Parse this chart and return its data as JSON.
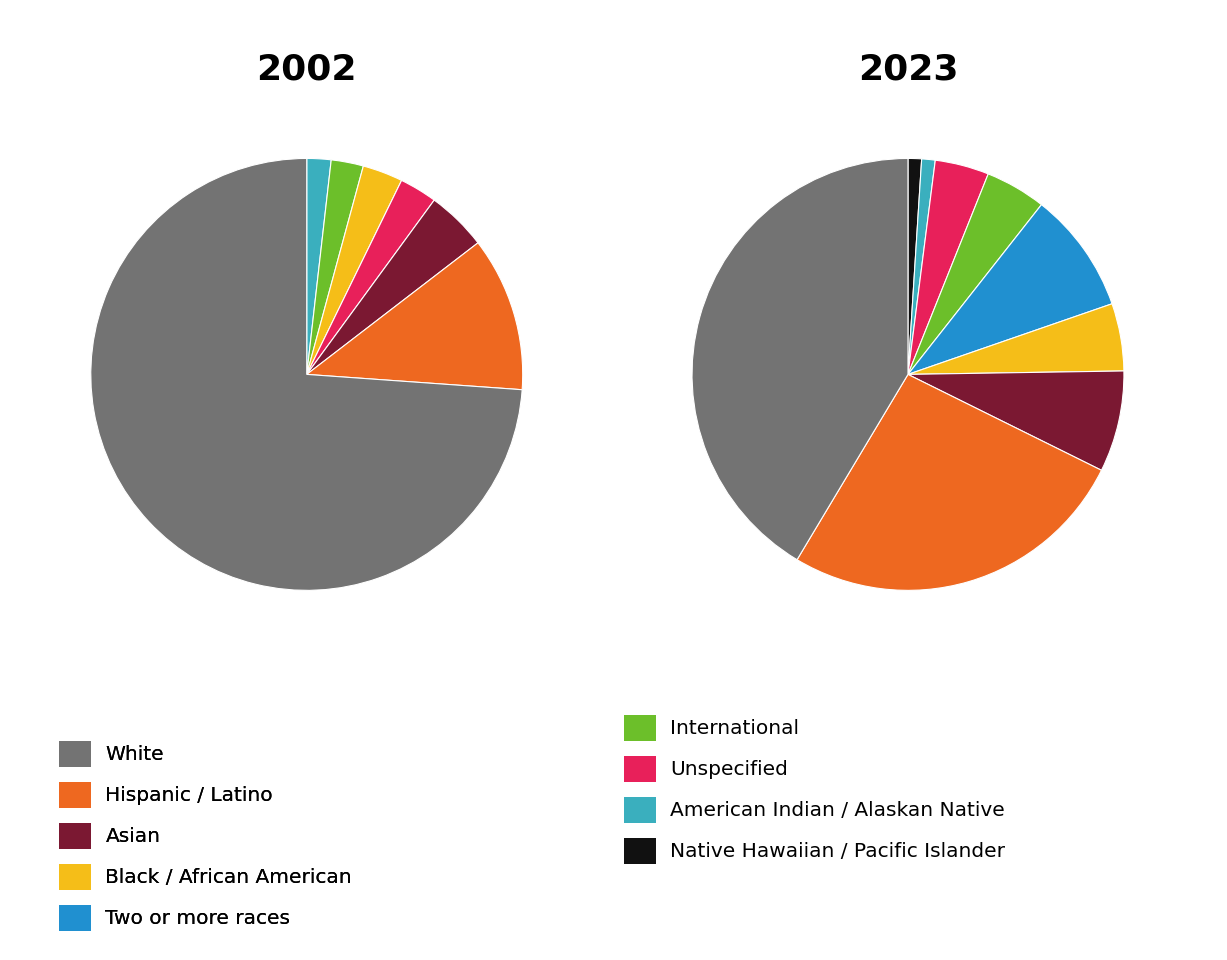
{
  "title_2002": "2002",
  "title_2023": "2023",
  "colors": {
    "White": "#737373",
    "Hispanic / Latino": "#EE6820",
    "Asian": "#7B1832",
    "Unspecified": "#E8205A",
    "Black / African American": "#F5BE18",
    "American Indian / Alaskan Native": "#3AAFBE",
    "International": "#6CBF2A",
    "Two or more races": "#2090D0",
    "Native Hawaiian / Pacific Islander": "#111111"
  },
  "order_2002": [
    "American Indian / Alaskan Native",
    "International",
    "Black / African American",
    "Unspecified",
    "Asian",
    "Hispanic / Latino",
    "White"
  ],
  "values_2002": {
    "White": 73.5,
    "Hispanic / Latino": 11.5,
    "Asian": 4.5,
    "Unspecified": 2.8,
    "Black / African American": 3.0,
    "American Indian / Alaskan Native": 1.8,
    "International": 2.4,
    "Two or more races": 0.0,
    "Native Hawaiian / Pacific Islander": 0.0
  },
  "order_2023": [
    "Native Hawaiian / Pacific Islander",
    "American Indian / Alaskan Native",
    "Unspecified",
    "International",
    "Two or more races",
    "Black / African American",
    "Asian",
    "Hispanic / Latino",
    "White"
  ],
  "values_2023": {
    "White": 41.0,
    "Hispanic / Latino": 26.0,
    "Asian": 7.5,
    "Unspecified": 4.0,
    "Black / African American": 5.0,
    "American Indian / Alaskan Native": 1.0,
    "International": 4.5,
    "Two or more races": 9.0,
    "Native Hawaiian / Pacific Islander": 1.0
  },
  "legend_col1": [
    "White",
    "Hispanic / Latino",
    "Asian",
    "Black / African American",
    "Two or more races"
  ],
  "legend_col2": [
    "International",
    "Unspecified",
    "American Indian / Alaskan Native",
    "Native Hawaiian / Pacific Islander"
  ],
  "background_color": "#FFFFFF",
  "title_fontsize": 26,
  "title_fontweight": "bold",
  "legend_fontsize": 14.5
}
